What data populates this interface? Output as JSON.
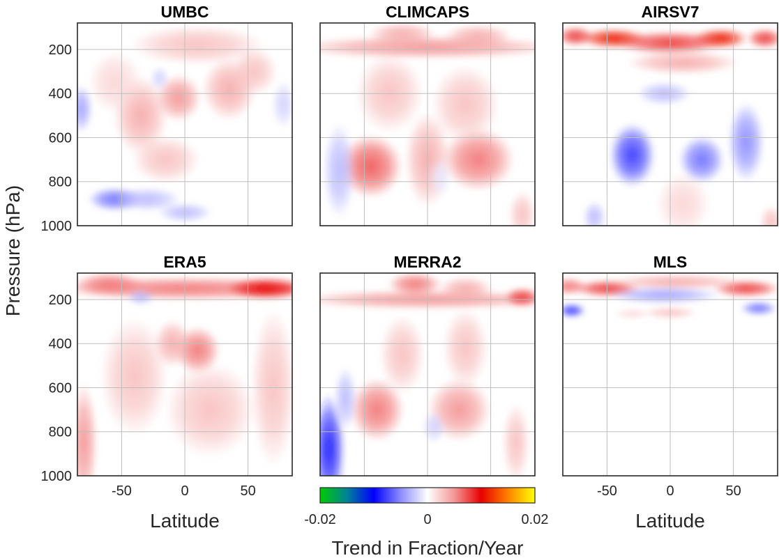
{
  "chart_data": {
    "type": "heatmap",
    "ylabel": "Pressure (hPa)",
    "xlabel": "Latitude",
    "xlim": [
      -85,
      85
    ],
    "ylim": [
      80,
      1000
    ],
    "y_reversed": true,
    "xticks": [
      -50,
      0,
      50
    ],
    "xtick_labels": [
      "-50",
      "0",
      "50"
    ],
    "yticks": [
      200,
      400,
      600,
      800,
      1000
    ],
    "ytick_labels": [
      "200",
      "400",
      "600",
      "800",
      "1000"
    ],
    "grid": true,
    "colorbar": {
      "label": "Trend in Fraction/Year",
      "range": [
        -0.02,
        0.02
      ],
      "tick_labels": [
        "-0.02",
        "0",
        "0.02"
      ],
      "colors": [
        "#00cc00",
        "#0000ff",
        "#ffffff",
        "#ff0000",
        "#ffff00"
      ]
    },
    "panels": [
      {
        "title": "UMBC",
        "features": [
          {
            "lat": -5,
            "p": 420,
            "v": 0.005,
            "sx": 10,
            "sy": 60
          },
          {
            "lat": 35,
            "p": 380,
            "v": 0.004,
            "sx": 12,
            "sy": 80
          },
          {
            "lat": -35,
            "p": 500,
            "v": 0.004,
            "sx": 12,
            "sy": 100
          },
          {
            "lat": 10,
            "p": 180,
            "v": 0.003,
            "sx": 30,
            "sy": 50
          },
          {
            "lat": -15,
            "p": 700,
            "v": 0.003,
            "sx": 15,
            "sy": 60
          },
          {
            "lat": -55,
            "p": 350,
            "v": 0.002,
            "sx": 12,
            "sy": 80
          },
          {
            "lat": 55,
            "p": 300,
            "v": 0.003,
            "sx": 10,
            "sy": 60
          },
          {
            "lat": -82,
            "p": 470,
            "v": -0.004,
            "sx": 5,
            "sy": 60
          },
          {
            "lat": -55,
            "p": 880,
            "v": -0.006,
            "sx": 12,
            "sy": 30
          },
          {
            "lat": -30,
            "p": 880,
            "v": -0.003,
            "sx": 15,
            "sy": 30
          },
          {
            "lat": 0,
            "p": 940,
            "v": -0.003,
            "sx": 12,
            "sy": 25
          },
          {
            "lat": -20,
            "p": 330,
            "v": -0.002,
            "sx": 4,
            "sy": 30
          },
          {
            "lat": 78,
            "p": 450,
            "v": -0.002,
            "sx": 5,
            "sy": 60
          }
        ]
      },
      {
        "title": "CLIMCAPS",
        "features": [
          {
            "lat": 0,
            "p": 190,
            "v": 0.005,
            "sx": 60,
            "sy": 30
          },
          {
            "lat": -20,
            "p": 130,
            "v": 0.004,
            "sx": 15,
            "sy": 30
          },
          {
            "lat": 40,
            "p": 140,
            "v": 0.004,
            "sx": 15,
            "sy": 30
          },
          {
            "lat": -45,
            "p": 730,
            "v": 0.007,
            "sx": 14,
            "sy": 80
          },
          {
            "lat": 40,
            "p": 700,
            "v": 0.006,
            "sx": 16,
            "sy": 80
          },
          {
            "lat": 0,
            "p": 700,
            "v": 0.004,
            "sx": 10,
            "sy": 120
          },
          {
            "lat": -30,
            "p": 400,
            "v": 0.003,
            "sx": 15,
            "sy": 100
          },
          {
            "lat": 30,
            "p": 450,
            "v": 0.003,
            "sx": 15,
            "sy": 100
          },
          {
            "lat": -70,
            "p": 750,
            "v": -0.003,
            "sx": 7,
            "sy": 120
          },
          {
            "lat": 10,
            "p": 780,
            "v": -0.001,
            "sx": 5,
            "sy": 50
          },
          {
            "lat": 75,
            "p": 950,
            "v": 0.003,
            "sx": 6,
            "sy": 60
          }
        ]
      },
      {
        "title": "AIRSV7",
        "features": [
          {
            "lat": -45,
            "p": 150,
            "v": 0.011,
            "sx": 15,
            "sy": 25
          },
          {
            "lat": 40,
            "p": 150,
            "v": 0.011,
            "sx": 12,
            "sy": 25
          },
          {
            "lat": 0,
            "p": 170,
            "v": 0.008,
            "sx": 25,
            "sy": 30
          },
          {
            "lat": -75,
            "p": 140,
            "v": 0.008,
            "sx": 8,
            "sy": 25
          },
          {
            "lat": 75,
            "p": 150,
            "v": 0.008,
            "sx": 8,
            "sy": 25
          },
          {
            "lat": 10,
            "p": 260,
            "v": 0.004,
            "sx": 25,
            "sy": 30
          },
          {
            "lat": -30,
            "p": 680,
            "v": -0.008,
            "sx": 10,
            "sy": 80
          },
          {
            "lat": 25,
            "p": 700,
            "v": -0.006,
            "sx": 10,
            "sy": 60
          },
          {
            "lat": 60,
            "p": 620,
            "v": -0.005,
            "sx": 8,
            "sy": 100
          },
          {
            "lat": -5,
            "p": 400,
            "v": -0.003,
            "sx": 12,
            "sy": 30
          },
          {
            "lat": -60,
            "p": 960,
            "v": -0.003,
            "sx": 5,
            "sy": 40
          },
          {
            "lat": 10,
            "p": 900,
            "v": 0.002,
            "sx": 12,
            "sy": 80
          },
          {
            "lat": 80,
            "p": 980,
            "v": 0.003,
            "sx": 5,
            "sy": 40
          }
        ]
      },
      {
        "title": "ERA5",
        "features": [
          {
            "lat": 0,
            "p": 150,
            "v": 0.006,
            "sx": 60,
            "sy": 30
          },
          {
            "lat": 65,
            "p": 150,
            "v": 0.01,
            "sx": 18,
            "sy": 28
          },
          {
            "lat": -60,
            "p": 130,
            "v": 0.006,
            "sx": 15,
            "sy": 30
          },
          {
            "lat": 10,
            "p": 430,
            "v": 0.006,
            "sx": 10,
            "sy": 60
          },
          {
            "lat": -10,
            "p": 400,
            "v": 0.004,
            "sx": 8,
            "sy": 60
          },
          {
            "lat": -40,
            "p": 550,
            "v": 0.003,
            "sx": 15,
            "sy": 150
          },
          {
            "lat": 20,
            "p": 700,
            "v": 0.003,
            "sx": 20,
            "sy": 120
          },
          {
            "lat": -80,
            "p": 850,
            "v": 0.005,
            "sx": 6,
            "sy": 150
          },
          {
            "lat": 70,
            "p": 600,
            "v": 0.003,
            "sx": 10,
            "sy": 200
          },
          {
            "lat": -35,
            "p": 190,
            "v": -0.003,
            "sx": 6,
            "sy": 20
          }
        ]
      },
      {
        "title": "MERRA2",
        "features": [
          {
            "lat": 0,
            "p": 200,
            "v": 0.005,
            "sx": 60,
            "sy": 25
          },
          {
            "lat": -10,
            "p": 130,
            "v": 0.006,
            "sx": 12,
            "sy": 30
          },
          {
            "lat": 30,
            "p": 150,
            "v": 0.004,
            "sx": 12,
            "sy": 30
          },
          {
            "lat": 75,
            "p": 190,
            "v": 0.008,
            "sx": 8,
            "sy": 25
          },
          {
            "lat": -40,
            "p": 700,
            "v": 0.006,
            "sx": 12,
            "sy": 80
          },
          {
            "lat": 25,
            "p": 700,
            "v": 0.005,
            "sx": 14,
            "sy": 80
          },
          {
            "lat": -20,
            "p": 450,
            "v": 0.003,
            "sx": 10,
            "sy": 100
          },
          {
            "lat": 30,
            "p": 420,
            "v": 0.003,
            "sx": 10,
            "sy": 100
          },
          {
            "lat": -78,
            "p": 880,
            "v": -0.009,
            "sx": 7,
            "sy": 140
          },
          {
            "lat": -65,
            "p": 650,
            "v": -0.003,
            "sx": 5,
            "sy": 80
          },
          {
            "lat": 5,
            "p": 780,
            "v": -0.002,
            "sx": 5,
            "sy": 40
          },
          {
            "lat": 70,
            "p": 850,
            "v": 0.003,
            "sx": 6,
            "sy": 100
          }
        ]
      },
      {
        "title": "MLS",
        "features": [
          {
            "lat": -50,
            "p": 150,
            "v": 0.008,
            "sx": 15,
            "sy": 22
          },
          {
            "lat": 60,
            "p": 150,
            "v": 0.008,
            "sx": 15,
            "sy": 22
          },
          {
            "lat": -80,
            "p": 140,
            "v": 0.006,
            "sx": 8,
            "sy": 22
          },
          {
            "lat": 5,
            "p": 120,
            "v": 0.004,
            "sx": 30,
            "sy": 20
          },
          {
            "lat": -5,
            "p": 180,
            "v": -0.004,
            "sx": 25,
            "sy": 22
          },
          {
            "lat": -78,
            "p": 250,
            "v": -0.008,
            "sx": 6,
            "sy": 18
          },
          {
            "lat": 70,
            "p": 240,
            "v": -0.006,
            "sx": 8,
            "sy": 18
          },
          {
            "lat": 0,
            "p": 260,
            "v": 0.003,
            "sx": 12,
            "sy": 15
          },
          {
            "lat": -30,
            "p": 265,
            "v": 0.002,
            "sx": 8,
            "sy": 12
          }
        ]
      }
    ]
  }
}
